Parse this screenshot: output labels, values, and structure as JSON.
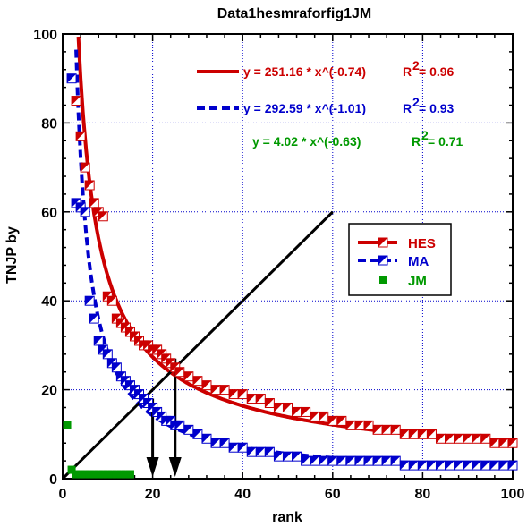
{
  "chart_data": {
    "type": "scatter",
    "title": "Data1hesmraforfig1JM",
    "xlabel": "rank",
    "ylabel": "TNJP  by",
    "xlim": [
      0,
      100
    ],
    "ylim": [
      0,
      100
    ],
    "xticks": [
      0,
      20,
      40,
      60,
      80,
      100
    ],
    "yticks": [
      0,
      20,
      40,
      60,
      80,
      100
    ],
    "x_tick_labels": [
      "0",
      "20",
      "40",
      "60",
      "80",
      "100"
    ],
    "y_tick_labels": [
      "0",
      "20",
      "40",
      "60",
      "80",
      "100"
    ],
    "grid": true,
    "legend_position": "right",
    "series": [
      {
        "name": "HES",
        "color": "#cc0000",
        "marker": "half-filled-square",
        "points": [
          [
            3,
            85
          ],
          [
            4,
            77
          ],
          [
            5,
            70
          ],
          [
            6,
            66
          ],
          [
            7,
            62
          ],
          [
            8,
            60
          ],
          [
            9,
            59
          ],
          [
            10,
            41
          ],
          [
            11,
            40
          ],
          [
            12,
            36
          ],
          [
            13,
            35
          ],
          [
            14,
            34
          ],
          [
            15,
            33
          ],
          [
            16,
            32
          ],
          [
            17,
            31
          ],
          [
            18,
            30
          ],
          [
            19,
            30
          ],
          [
            20,
            29
          ],
          [
            21,
            29
          ],
          [
            22,
            28
          ],
          [
            23,
            27
          ],
          [
            24,
            26
          ],
          [
            25,
            25
          ],
          [
            26,
            24
          ],
          [
            28,
            23
          ],
          [
            30,
            22
          ],
          [
            32,
            21
          ],
          [
            34,
            20
          ],
          [
            36,
            20
          ],
          [
            38,
            19
          ],
          [
            40,
            19
          ],
          [
            42,
            18
          ],
          [
            44,
            18
          ],
          [
            46,
            17
          ],
          [
            48,
            16
          ],
          [
            50,
            16
          ],
          [
            52,
            15
          ],
          [
            54,
            15
          ],
          [
            56,
            14
          ],
          [
            58,
            14
          ],
          [
            60,
            13
          ],
          [
            62,
            13
          ],
          [
            64,
            12
          ],
          [
            66,
            12
          ],
          [
            68,
            12
          ],
          [
            70,
            11
          ],
          [
            72,
            11
          ],
          [
            74,
            11
          ],
          [
            76,
            10
          ],
          [
            78,
            10
          ],
          [
            80,
            10
          ],
          [
            82,
            10
          ],
          [
            84,
            9
          ],
          [
            86,
            9
          ],
          [
            88,
            9
          ],
          [
            90,
            9
          ],
          [
            92,
            9
          ],
          [
            94,
            9
          ],
          [
            96,
            8
          ],
          [
            98,
            8
          ],
          [
            100,
            8
          ]
        ],
        "fit": {
          "a": 251.16,
          "b": -0.74,
          "r2": 0.96,
          "label": "y = 251.16 * x^(-0.74)",
          "r2_label": "R",
          "r2_value": "= 0.96"
        }
      },
      {
        "name": "MA",
        "color": "#0000cc",
        "marker": "half-filled-square",
        "points": [
          [
            2,
            90
          ],
          [
            3,
            62
          ],
          [
            4,
            61
          ],
          [
            5,
            60
          ],
          [
            6,
            40
          ],
          [
            7,
            36
          ],
          [
            8,
            31
          ],
          [
            9,
            29
          ],
          [
            10,
            28
          ],
          [
            11,
            26
          ],
          [
            12,
            25
          ],
          [
            13,
            23
          ],
          [
            14,
            22
          ],
          [
            15,
            21
          ],
          [
            16,
            20
          ],
          [
            17,
            19
          ],
          [
            18,
            18
          ],
          [
            19,
            17
          ],
          [
            20,
            16
          ],
          [
            21,
            15
          ],
          [
            22,
            14
          ],
          [
            23,
            13
          ],
          [
            24,
            13
          ],
          [
            25,
            12
          ],
          [
            26,
            12
          ],
          [
            28,
            11
          ],
          [
            30,
            10
          ],
          [
            32,
            9
          ],
          [
            34,
            8
          ],
          [
            36,
            8
          ],
          [
            38,
            7
          ],
          [
            40,
            7
          ],
          [
            42,
            6
          ],
          [
            44,
            6
          ],
          [
            46,
            6
          ],
          [
            48,
            5
          ],
          [
            50,
            5
          ],
          [
            52,
            5
          ],
          [
            54,
            4
          ],
          [
            56,
            4
          ],
          [
            58,
            4
          ],
          [
            60,
            4
          ],
          [
            62,
            4
          ],
          [
            64,
            4
          ],
          [
            66,
            4
          ],
          [
            68,
            4
          ],
          [
            70,
            4
          ],
          [
            72,
            4
          ],
          [
            74,
            4
          ],
          [
            76,
            3
          ],
          [
            78,
            3
          ],
          [
            80,
            3
          ],
          [
            82,
            3
          ],
          [
            84,
            3
          ],
          [
            86,
            3
          ],
          [
            88,
            3
          ],
          [
            90,
            3
          ],
          [
            92,
            3
          ],
          [
            94,
            3
          ],
          [
            96,
            3
          ],
          [
            98,
            3
          ],
          [
            100,
            3
          ]
        ],
        "fit": {
          "a": 292.59,
          "b": -1.01,
          "r2": 0.93,
          "label": "y = 292.59 * x^(-1.01)",
          "r2_label": "R",
          "r2_value": "= 0.93"
        }
      },
      {
        "name": "JM",
        "color": "#009900",
        "marker": "filled-square",
        "points": [
          [
            1,
            12
          ],
          [
            2,
            2
          ],
          [
            3,
            1
          ],
          [
            4,
            1
          ],
          [
            5,
            1
          ],
          [
            6,
            1
          ],
          [
            7,
            1
          ],
          [
            8,
            1
          ],
          [
            9,
            1
          ],
          [
            10,
            1
          ],
          [
            11,
            1
          ],
          [
            12,
            1
          ],
          [
            13,
            1
          ],
          [
            14,
            1
          ],
          [
            15,
            1
          ]
        ],
        "fit": {
          "a": 4.02,
          "b": -0.63,
          "r2": 0.71,
          "label": "y = 4.02 * x^(-0.63)",
          "r2_label": "R",
          "r2_value": "= 0.71"
        }
      }
    ],
    "annotations": {
      "diagonal_line": {
        "from": [
          0,
          0
        ],
        "to": [
          60,
          60
        ],
        "color": "#000000"
      },
      "arrows": [
        {
          "x": 20,
          "from_y": 18,
          "to_y": 0
        },
        {
          "x": 25,
          "from_y": 27,
          "to_y": 0
        }
      ]
    }
  }
}
